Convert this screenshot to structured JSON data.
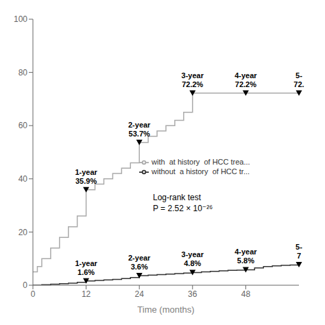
{
  "chart_data": {
    "type": "step",
    "title": "",
    "xlabel": "Time (months)",
    "ylabel": "",
    "xlim": [
      0,
      60
    ],
    "ylim": [
      0,
      100
    ],
    "xticks": [
      0,
      12,
      24,
      36,
      48
    ],
    "yticks": [
      0,
      20,
      40,
      60,
      80,
      100
    ],
    "grid": false,
    "legend": "center",
    "series": [
      {
        "name": "with  at history  of HCC trea...",
        "color": "#aaaaaa",
        "x": [
          0,
          1,
          2,
          4,
          6,
          8,
          10,
          12,
          14,
          16,
          18,
          20,
          22,
          24,
          26,
          28,
          30,
          32,
          34,
          36,
          38,
          40,
          42,
          44,
          46,
          48,
          50,
          52,
          54,
          56,
          58,
          60
        ],
        "values": [
          5,
          7,
          10,
          14,
          18,
          22,
          26,
          35.9,
          38,
          40,
          42,
          44,
          46,
          53.7,
          56,
          58,
          60,
          62,
          65,
          72.2,
          72.2,
          72.2,
          72.2,
          72.2,
          72.2,
          72.2,
          72.2,
          72.2,
          72.2,
          72.2,
          72.2,
          72.2
        ]
      },
      {
        "name": "without  a history  of HCC tr...",
        "color": "#333333",
        "x": [
          0,
          2,
          4,
          6,
          8,
          10,
          12,
          14,
          16,
          18,
          20,
          22,
          24,
          26,
          28,
          30,
          32,
          34,
          36,
          38,
          40,
          42,
          44,
          46,
          48,
          50,
          52,
          54,
          56,
          58,
          60
        ],
        "values": [
          0,
          0.2,
          0.4,
          0.6,
          0.8,
          1.1,
          1.6,
          1.8,
          2.0,
          2.2,
          2.5,
          2.9,
          3.6,
          3.8,
          4.0,
          4.2,
          4.4,
          4.6,
          4.8,
          5.0,
          5.2,
          5.4,
          5.6,
          5.7,
          5.8,
          6.5,
          7.0,
          7.3,
          7.5,
          7.6,
          7.7
        ]
      }
    ],
    "annotations": [
      {
        "text": "1-year\n35.9%",
        "x": 12,
        "y": 35.9
      },
      {
        "text": "2-year\n53.7%",
        "x": 24,
        "y": 53.7
      },
      {
        "text": "3-year\n72.2%",
        "x": 36,
        "y": 72.2
      },
      {
        "text": "4-year\n72.2%",
        "x": 48,
        "y": 72.2
      },
      {
        "text": "5-\n72.",
        "x": 60,
        "y": 72.2
      },
      {
        "text": "1-year\n1.6%",
        "x": 12,
        "y": 1.6
      },
      {
        "text": "2-year\n3.6%",
        "x": 24,
        "y": 3.6
      },
      {
        "text": "3-year\n4.8%",
        "x": 36,
        "y": 4.8
      },
      {
        "text": "4-year\n5.8%",
        "x": 48,
        "y": 5.8
      },
      {
        "text": "5-\n7",
        "x": 60,
        "y": 7.7
      },
      {
        "text": "Log-rank test\nP = 2.52 × 10⁻²⁶"
      }
    ]
  }
}
